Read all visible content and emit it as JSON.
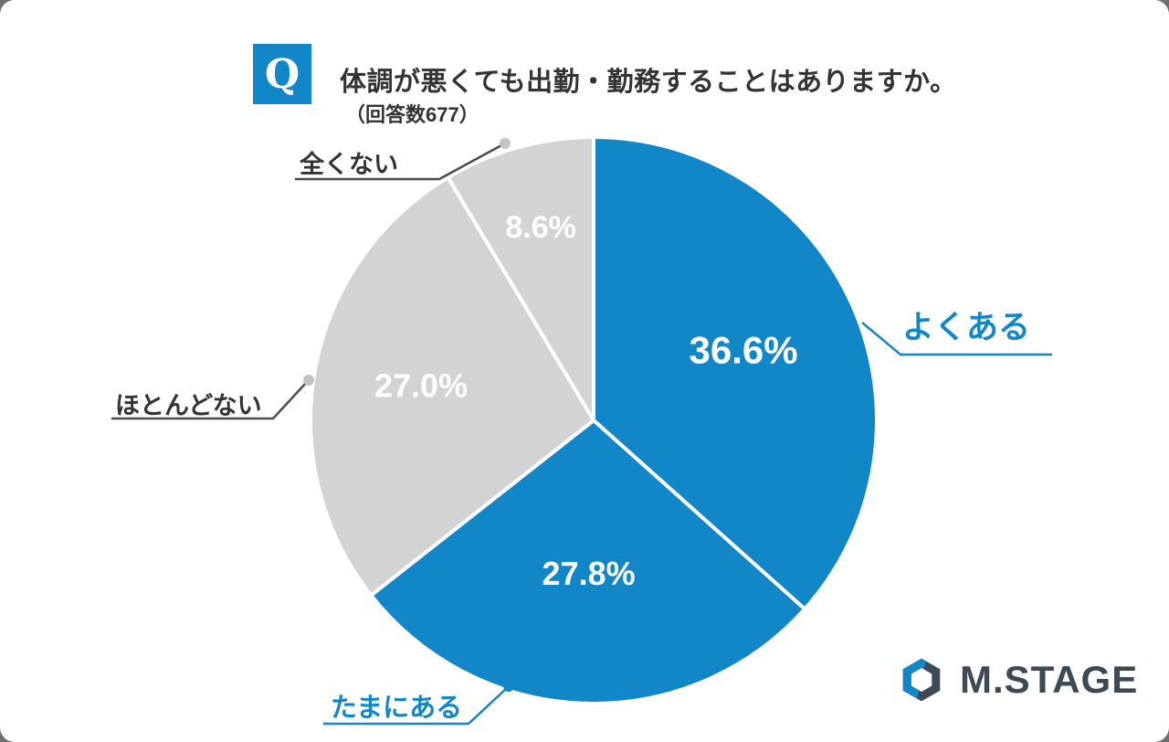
{
  "header": {
    "q_badge": "Q",
    "title": "体調が悪くても出勤・勤務することはありますか。",
    "subtitle": "（回答数677）"
  },
  "chart_data": {
    "type": "pie",
    "title": "体調が悪くても出勤・勤務することはありますか。",
    "response_count": 677,
    "categories": [
      "よくある",
      "たまにある",
      "ほとんどない",
      "全くない"
    ],
    "values": [
      36.6,
      27.8,
      27.0,
      8.6
    ],
    "value_labels": [
      "36.6%",
      "27.8%",
      "27.0%",
      "8.6%"
    ],
    "colors": [
      "#1287c7",
      "#1287c7",
      "#d3d3d3",
      "#d3d3d3"
    ],
    "start_angle_deg": -90,
    "direction": "clockwise",
    "legend_position": "callouts"
  },
  "callouts": {
    "yokuaru": {
      "label": "よくある",
      "color": "#1287c7"
    },
    "tamaniaru": {
      "label": "たまにある",
      "color": "#1287c7"
    },
    "hotondonai": {
      "label": "ほとんどない",
      "color": "#333333"
    },
    "mattakunai": {
      "label": "全くない",
      "color": "#333333"
    }
  },
  "logo": {
    "text": "M.STAGE"
  },
  "colors": {
    "accent_blue": "#1287c7",
    "gray_slice": "#d3d3d3",
    "text_dark": "#333333",
    "logo_dark": "#3d4a54"
  }
}
